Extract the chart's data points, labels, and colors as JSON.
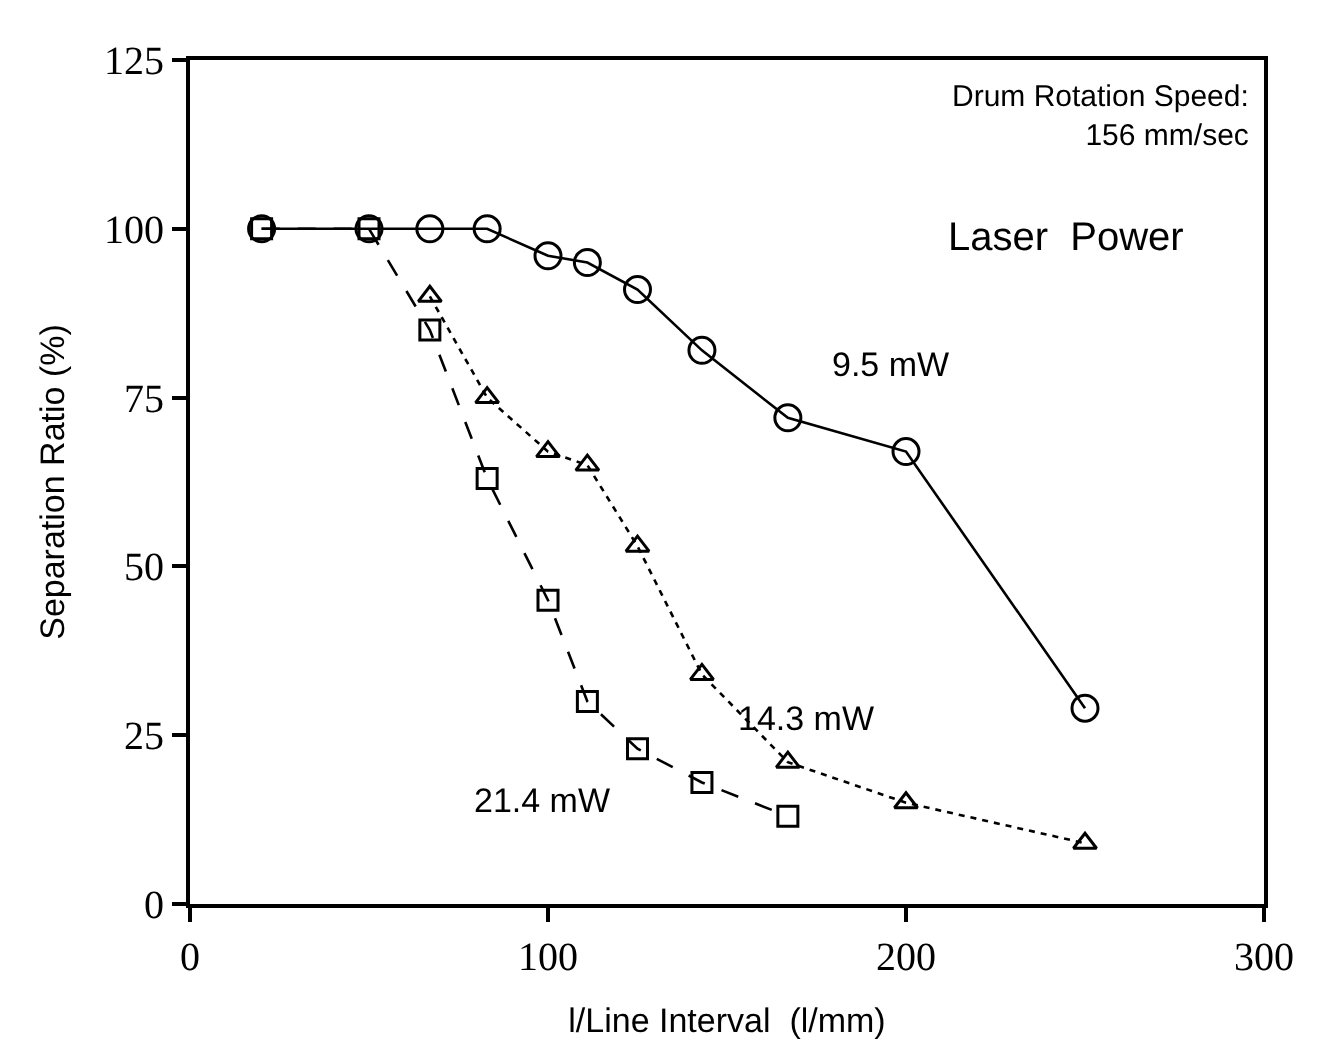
{
  "chart_data": {
    "type": "line",
    "xlabel": "l/Line Interval  (l/mm)",
    "ylabel": "Separation Ratio (%)",
    "xlim": [
      0,
      300
    ],
    "xticks": [
      0,
      100,
      200,
      300
    ],
    "ylim": [
      0,
      125
    ],
    "yticks": [
      0,
      25,
      50,
      75,
      100,
      125
    ],
    "legend": false,
    "annotations": [
      "Drum Rotation Speed:\n156 mm/sec",
      "Laser  Power"
    ],
    "series": [
      {
        "name": "9.5 mW",
        "color": "#000000",
        "marker": "circle",
        "line_style": "solid",
        "x": [
          20,
          50,
          67,
          83,
          100,
          111,
          125,
          143,
          167,
          200,
          250
        ],
        "values": [
          100,
          100,
          100,
          100,
          96,
          95,
          91,
          82,
          72,
          67,
          29
        ]
      },
      {
        "name": "14.3 mW",
        "color": "#000000",
        "marker": "triangle",
        "line_style": "dotted",
        "x": [
          67,
          83,
          100,
          111,
          125,
          143,
          167,
          200,
          250
        ],
        "values": [
          90,
          75,
          67,
          65,
          53,
          34,
          21,
          15,
          9
        ]
      },
      {
        "name": "21.4 mW",
        "color": "#000000",
        "marker": "square",
        "line_style": "dashed",
        "x": [
          20,
          50,
          67,
          83,
          100,
          111,
          125,
          143,
          167
        ],
        "values": [
          100,
          100,
          85,
          63,
          45,
          30,
          23,
          18,
          13
        ]
      }
    ]
  }
}
